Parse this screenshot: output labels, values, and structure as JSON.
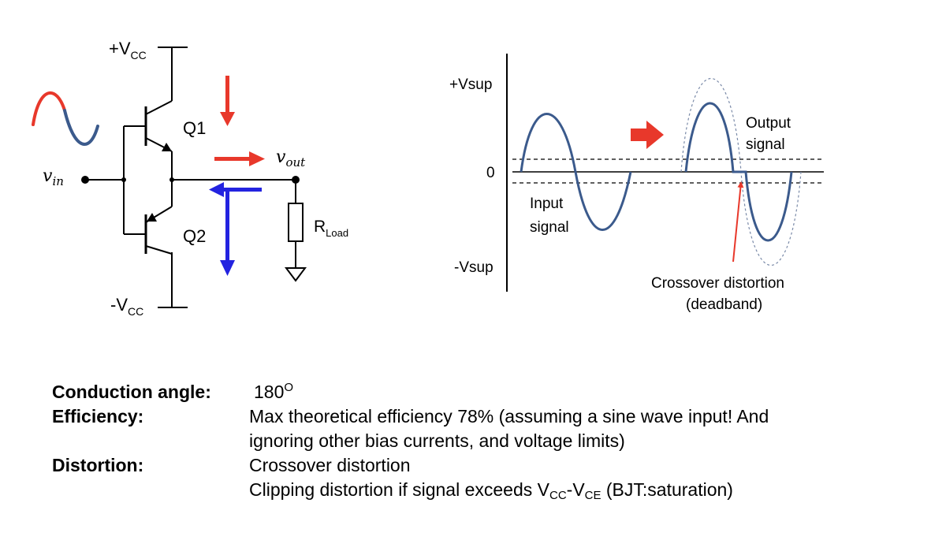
{
  "circuit": {
    "vcc_pos": {
      "prefix": "+V",
      "sub": "CC"
    },
    "vcc_neg": {
      "prefix": "-V",
      "sub": "CC"
    },
    "q1": "Q1",
    "q2": "Q2",
    "vout": {
      "base": "v",
      "sub": "out"
    },
    "vin": {
      "base": "v",
      "sub": "in"
    },
    "rload": {
      "prefix": "R",
      "sub": "Load"
    },
    "colors": {
      "push": "#e8382b",
      "pull": "#2323e0",
      "wave": "#3b5a8c"
    }
  },
  "waveform": {
    "vsup_pos": "+Vsup",
    "zero": "0",
    "vsup_neg": "-Vsup",
    "output_label_1": "Output",
    "output_label_2": "signal",
    "input_label_1": "Input",
    "input_label_2": "signal",
    "crossover_label_1": "Crossover distortion",
    "crossover_label_2": "(deadband)"
  },
  "specs": {
    "conduction_label": "Conduction angle:",
    "conduction_value": "180",
    "conduction_unit": "O",
    "efficiency_label": "Efficiency:",
    "efficiency_line1": "Max theoretical efficiency 78% (assuming a sine wave input! And",
    "efficiency_line2": "ignoring other bias currents, and voltage limits)",
    "distortion_label": "Distortion:",
    "distortion_line1": "Crossover distortion",
    "clip_pre": "Clipping distortion if signal exceeds V",
    "clip_sub1": "CC",
    "clip_dash": "-V",
    "clip_sub2": "CE",
    "clip_post": " (BJT:saturation)"
  }
}
